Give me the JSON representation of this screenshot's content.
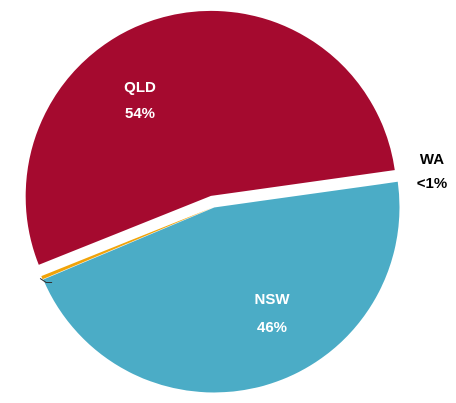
{
  "chart_data": {
    "type": "pie",
    "categories": [
      "QLD",
      "NSW",
      "WA"
    ],
    "values": [
      54,
      46,
      0.3
    ],
    "value_labels": [
      "54%",
      "46%",
      "<1%"
    ],
    "colors": [
      "#a50a2f",
      "#4bacc6",
      "#f0a30a"
    ],
    "exploded": [
      "QLD"
    ]
  }
}
